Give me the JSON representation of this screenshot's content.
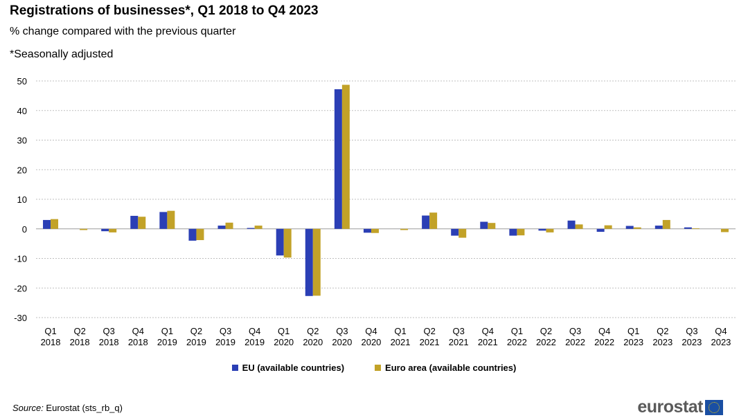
{
  "title": "Registrations of businesses*, Q1 2018 to Q4 2023",
  "subtitle": "% change compared with the previous quarter",
  "note": "*Seasonally adjusted",
  "source_label": "Source:",
  "source_text": " Eurostat (sts_rb_q)",
  "logo_text": "eurostat",
  "colors": {
    "eu": "#2b3fb5",
    "euro_area": "#c2a228",
    "grid": "#bfbfbf"
  },
  "chart_data": {
    "type": "bar",
    "categories": [
      [
        "Q1",
        "2018"
      ],
      [
        "Q2",
        "2018"
      ],
      [
        "Q3",
        "2018"
      ],
      [
        "Q4",
        "2018"
      ],
      [
        "Q1",
        "2019"
      ],
      [
        "Q2",
        "2019"
      ],
      [
        "Q3",
        "2019"
      ],
      [
        "Q4",
        "2019"
      ],
      [
        "Q1",
        "2020"
      ],
      [
        "Q2",
        "2020"
      ],
      [
        "Q3",
        "2020"
      ],
      [
        "Q4",
        "2020"
      ],
      [
        "Q1",
        "2021"
      ],
      [
        "Q2",
        "2021"
      ],
      [
        "Q3",
        "2021"
      ],
      [
        "Q4",
        "2021"
      ],
      [
        "Q1",
        "2022"
      ],
      [
        "Q2",
        "2022"
      ],
      [
        "Q3",
        "2022"
      ],
      [
        "Q4",
        "2022"
      ],
      [
        "Q1",
        "2023"
      ],
      [
        "Q2",
        "2023"
      ],
      [
        "Q3",
        "2023"
      ],
      [
        "Q4",
        "2023"
      ]
    ],
    "series": [
      {
        "name": "EU (available countries)",
        "values": [
          3.0,
          0.0,
          -0.8,
          4.4,
          5.7,
          -4.0,
          1.1,
          0.3,
          -9.0,
          -22.7,
          47.2,
          -1.3,
          0.0,
          4.5,
          -2.3,
          2.4,
          -2.3,
          -0.6,
          2.8,
          -1.0,
          1.0,
          1.1,
          0.5,
          0.0
        ]
      },
      {
        "name": "Euro area (available countries)",
        "values": [
          3.3,
          -0.4,
          -1.2,
          4.1,
          6.1,
          -3.8,
          2.1,
          1.1,
          -9.7,
          -22.6,
          48.7,
          -1.4,
          -0.4,
          5.5,
          -3.0,
          2.0,
          -2.2,
          -1.2,
          1.5,
          1.2,
          0.5,
          3.0,
          0.2,
          -1.1
        ]
      }
    ],
    "yticks": [
      50,
      40,
      30,
      20,
      10,
      0,
      -10,
      -20,
      -30
    ],
    "ylim": [
      -30,
      50
    ],
    "grid": true,
    "legend_position": "bottom-center"
  }
}
